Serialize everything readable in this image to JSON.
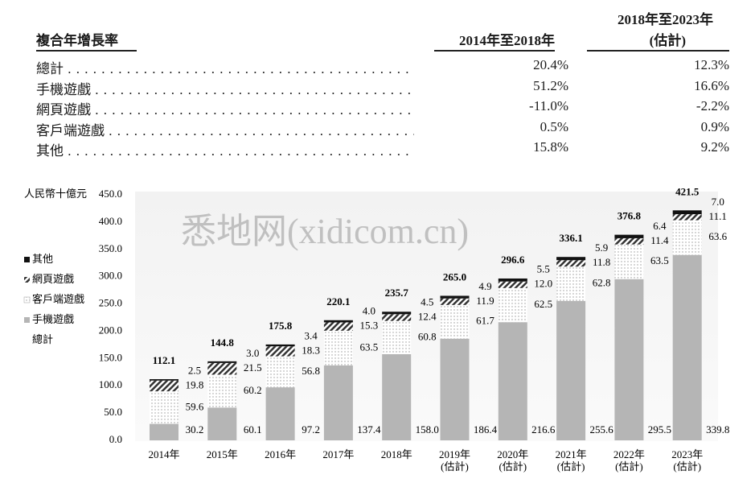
{
  "header": {
    "title": "複合年增長率",
    "col1": "2014年至2018年",
    "col2": "2018年至2023年",
    "col2_note": "(估計)"
  },
  "table": {
    "rows": [
      [
        "總計",
        "20.4%",
        "12.3%"
      ],
      [
        "手機遊戲",
        "51.2%",
        "16.6%"
      ],
      [
        "網頁遊戲",
        "-11.0%",
        "-2.2%"
      ],
      [
        "客戶端遊戲",
        "0.5%",
        "0.9%"
      ],
      [
        "其他",
        "15.8%",
        "9.2%"
      ]
    ]
  },
  "watermark": "悉地网(xidicom.cn)",
  "chart_data": {
    "type": "stacked_bar",
    "y_label": "人民幣十億元",
    "ylim": [
      0,
      450
    ],
    "yticks": [
      {
        "value": 0,
        "label": "0.0"
      },
      {
        "value": 50,
        "label": "50.0"
      },
      {
        "value": 100,
        "label": "100.0"
      },
      {
        "value": 150,
        "label": "150.0"
      },
      {
        "value": 200,
        "label": "200.0"
      },
      {
        "value": 250,
        "label": "250.0"
      },
      {
        "value": 300,
        "label": "300.0"
      },
      {
        "value": 350,
        "label": "350.0"
      },
      {
        "value": 400,
        "label": "400.0"
      },
      {
        "value": 450,
        "label": "450.0"
      }
    ],
    "categories": [
      "2014年",
      "2015年",
      "2016年",
      "2017年",
      "2018年",
      "2019年\n(估計)",
      "2020年\n(估計)",
      "2021年\n(估計)",
      "2022年\n(估計)",
      "2023年\n(估計)"
    ],
    "series": [
      {
        "name": "手機遊戲",
        "color": "#b5b5b5",
        "values": [
          30.2,
          60.1,
          97.2,
          137.4,
          158.0,
          186.4,
          216.6,
          255.6,
          295.5,
          339.8
        ],
        "value_labels": [
          "30.2",
          "60.1",
          "97.2",
          "137.4",
          "158.0",
          "186.4",
          "216.6",
          "255.6",
          "295.5",
          "339.8"
        ]
      },
      {
        "name": "客戶端遊戲",
        "color": "#999999",
        "pattern": "dots",
        "values": [
          59.6,
          60.2,
          56.8,
          63.5,
          60.8,
          61.7,
          62.5,
          62.8,
          63.5,
          63.6
        ],
        "value_labels": [
          "59.6",
          "60.2",
          "56.8",
          "63.5",
          "60.8",
          "61.7",
          "62.5",
          "62.8",
          "63.5",
          "63.6"
        ]
      },
      {
        "name": "網頁遊戲",
        "color": "#333333",
        "pattern": "hatch",
        "values": [
          19.8,
          21.5,
          18.3,
          15.3,
          12.4,
          11.9,
          12.0,
          11.8,
          11.4,
          11.1
        ],
        "value_labels": [
          "19.8",
          "21.5",
          "18.3",
          "15.3",
          "12.4",
          "11.9",
          "12.0",
          "11.8",
          "11.4",
          "11.1"
        ]
      },
      {
        "name": "其他",
        "color": "#111111",
        "values": [
          2.5,
          3.0,
          3.4,
          4.0,
          4.5,
          4.9,
          5.5,
          5.9,
          6.4,
          7.0
        ],
        "value_labels": [
          "2.5",
          "3.0",
          "3.4",
          "4.0",
          "4.5",
          "4.9",
          "5.5",
          "5.9",
          "6.4",
          "7.0"
        ]
      }
    ],
    "total_name": "總計",
    "totals": [
      112.1,
      144.8,
      175.8,
      220.1,
      235.7,
      265.0,
      296.6,
      336.1,
      376.8,
      421.5
    ],
    "total_labels": [
      "112.1",
      "144.8",
      "175.8",
      "220.1",
      "235.7",
      "265.0",
      "296.6",
      "336.1",
      "376.8",
      "421.5"
    ],
    "legend": "left"
  }
}
